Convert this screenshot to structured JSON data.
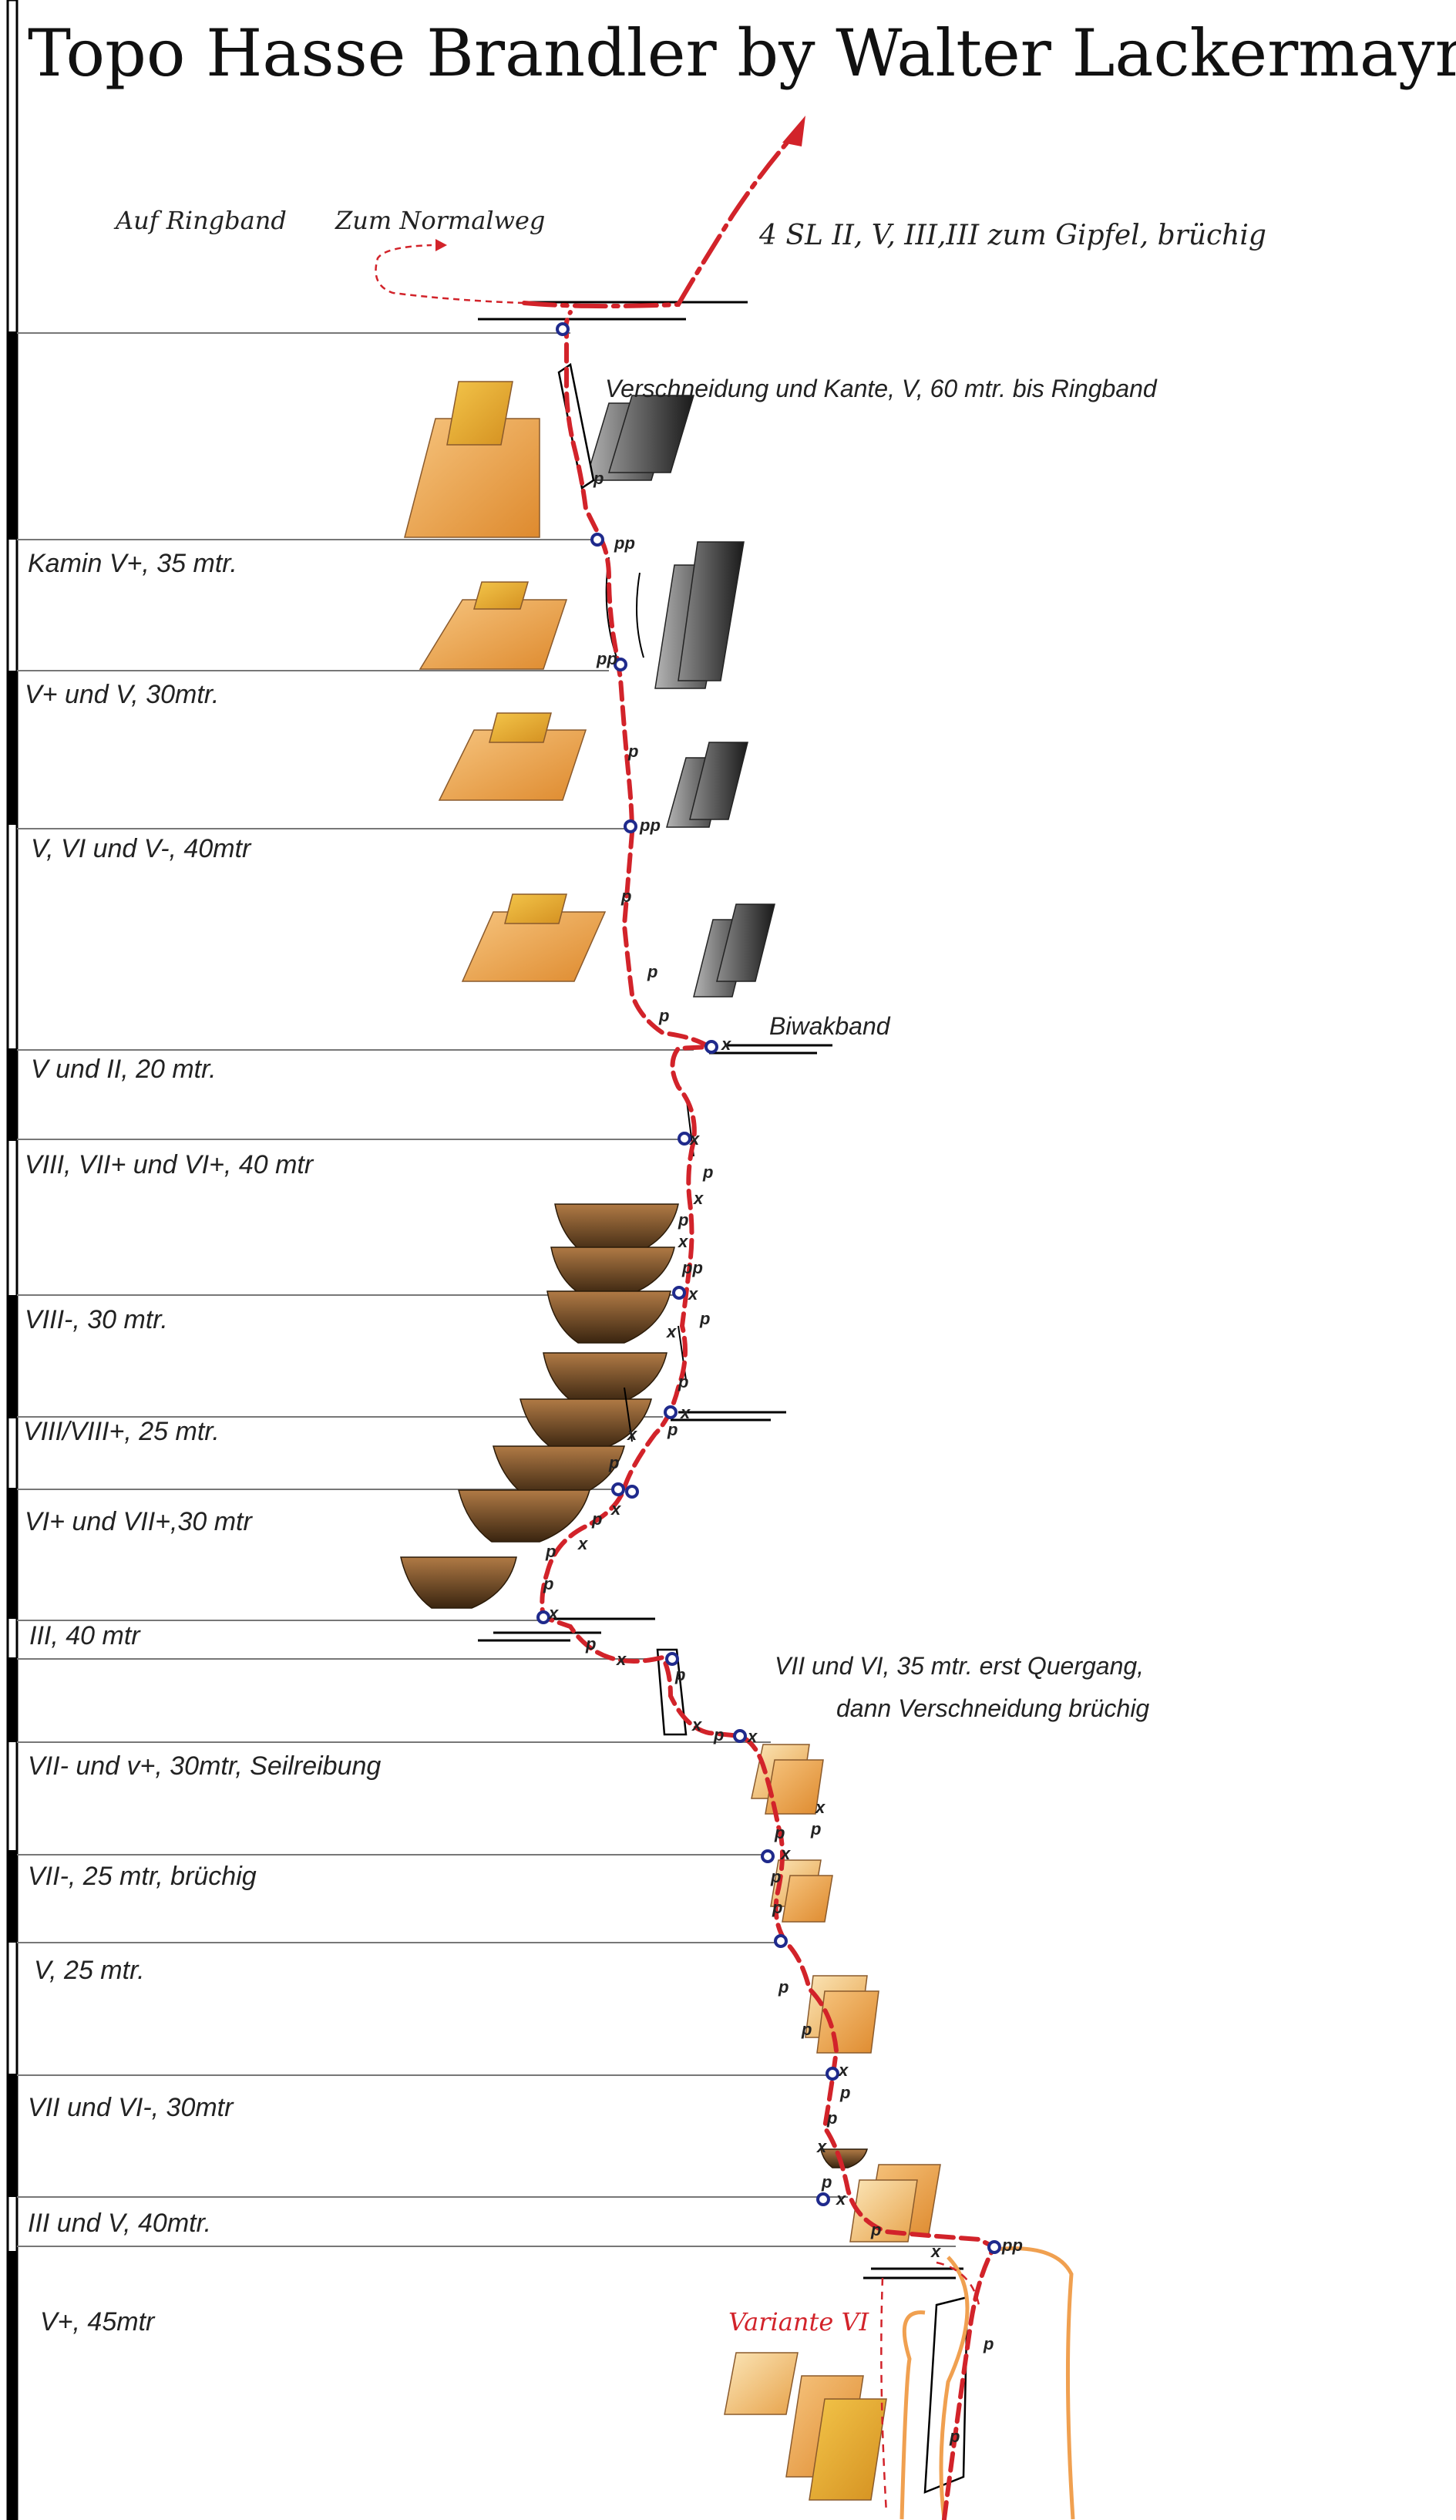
{
  "title": "Topo Hasse Brandler by Walter Lackermayr",
  "notes": {
    "ringband": "Auf Ringband",
    "normalweg": "Zum Normalweg",
    "summit": "4 SL II, V, III,III zum Gipfel, brüchig",
    "pitch_top": "Verschneidung und Kante, V, 60 mtr. bis Ringband",
    "biwak": "Biwakband",
    "traverse_line1": "VII und VI, 35 mtr. erst Quergang,",
    "traverse_line2": "dann Verschneidung brüchig",
    "variant": "Variante VI"
  },
  "pitches": [
    "Kamin V+, 35 mtr.",
    "V+ und V, 30mtr.",
    "V, VI und V-, 40mtr",
    "V und II, 20 mtr.",
    "VIII, VII+ und VI+, 40 mtr",
    "VIII-, 30 mtr.",
    "VIII/VIII+, 25 mtr.",
    "VI+ und VII+,30 mtr",
    "III, 40 mtr",
    "VII- und v+, 30mtr, Seilreibung",
    "VII-, 25 mtr, brüchig",
    "V, 25 mtr.",
    "VII und VI-, 30mtr",
    "III und V, 40mtr.",
    "V+, 45mtr"
  ],
  "marks": {
    "p": "p",
    "pp": "pp",
    "x": "x"
  },
  "colors": {
    "route": "#d2232a",
    "belay": "#1f2a8c",
    "slab": "#e8943a",
    "roof": "#8a5a2c",
    "rock": "#555555",
    "wall_edge": "#f0a050"
  }
}
